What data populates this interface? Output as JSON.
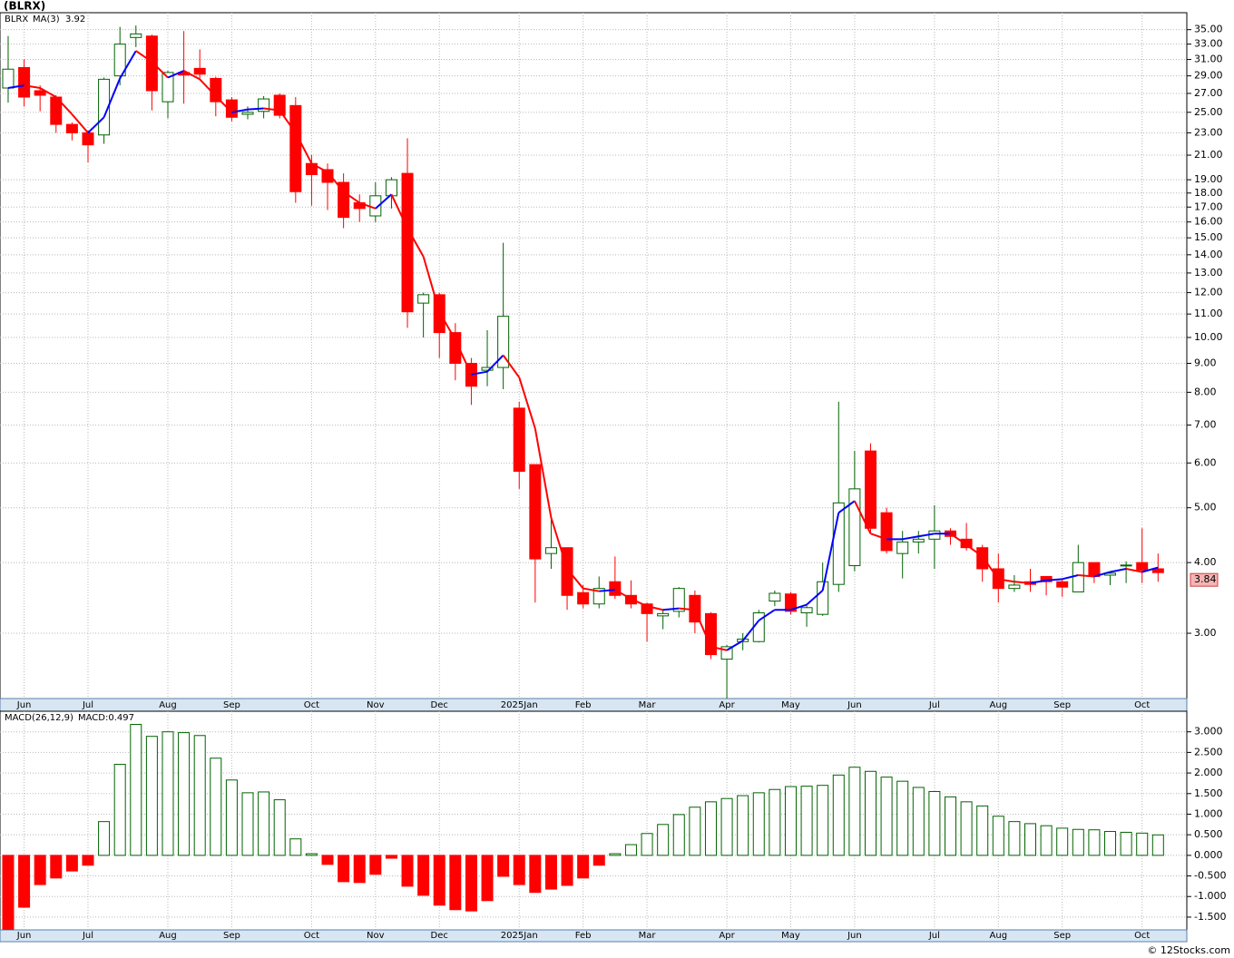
{
  "chart_data": [
    {
      "type": "candlestick",
      "title": "(BLRX)",
      "symbol": "BLRX",
      "symbol_color": "#008000",
      "up_color": "#006400",
      "down_color": "#ff0000",
      "log_scale": true,
      "grid": true,
      "open": [
        27.6,
        30.0,
        27.3,
        26.6,
        23.8,
        23.0,
        22.8,
        29.0,
        33.9,
        34.1,
        26.1,
        29.4,
        29.9,
        28.7,
        26.3,
        24.8,
        25.1,
        26.8,
        25.7,
        20.3,
        19.8,
        18.8,
        17.3,
        16.4,
        17.8,
        19.5,
        11.5,
        11.9,
        10.2,
        9.0,
        8.75,
        8.85,
        7.5,
        5.96,
        4.15,
        4.25,
        3.54,
        3.38,
        3.7,
        3.5,
        3.38,
        3.22,
        3.28,
        3.5,
        3.25,
        2.7,
        2.9,
        2.9,
        3.42,
        3.52,
        3.26,
        3.24,
        3.66,
        3.95,
        6.3,
        4.9,
        4.15,
        4.35,
        4.4,
        4.55,
        4.4,
        4.25,
        3.9,
        3.6,
        3.7,
        3.78,
        3.7,
        3.55,
        4.0,
        3.8,
        3.95,
        4.0,
        3.9
      ],
      "high": [
        34.1,
        31.0,
        27.9,
        26.8,
        24.0,
        23.2,
        28.8,
        35.4,
        35.6,
        34.3,
        29.6,
        34.8,
        32.3,
        28.9,
        26.6,
        25.6,
        26.7,
        27.0,
        26.6,
        21.0,
        20.3,
        19.5,
        17.9,
        18.8,
        19.2,
        22.5,
        12.0,
        12.0,
        10.6,
        9.2,
        10.3,
        14.7,
        7.7,
        5.96,
        4.85,
        4.25,
        3.65,
        3.78,
        4.1,
        3.72,
        3.4,
        3.3,
        3.62,
        3.57,
        3.27,
        2.86,
        3.0,
        3.3,
        3.57,
        3.55,
        3.36,
        4.0,
        7.7,
        6.3,
        6.5,
        5.0,
        4.55,
        4.55,
        5.05,
        4.6,
        4.7,
        4.3,
        4.15,
        3.8,
        3.9,
        3.78,
        3.75,
        4.3,
        4.0,
        3.85,
        4.02,
        4.6,
        4.15
      ],
      "low": [
        26.0,
        25.6,
        25.1,
        23.0,
        22.3,
        20.4,
        22.0,
        27.9,
        32.6,
        25.2,
        24.4,
        25.9,
        28.5,
        24.6,
        24.1,
        24.3,
        24.4,
        24.4,
        17.3,
        17.1,
        16.8,
        15.6,
        16.0,
        16.0,
        16.9,
        10.4,
        10.0,
        9.2,
        8.4,
        7.6,
        8.2,
        8.1,
        5.4,
        3.4,
        3.9,
        3.3,
        3.32,
        3.32,
        3.45,
        3.32,
        2.9,
        3.05,
        3.2,
        3.0,
        2.7,
        2.3,
        2.8,
        2.89,
        3.35,
        3.24,
        3.08,
        3.22,
        3.55,
        3.86,
        4.5,
        4.15,
        3.75,
        4.15,
        3.9,
        4.3,
        4.2,
        3.7,
        3.4,
        3.55,
        3.55,
        3.5,
        3.48,
        3.55,
        3.68,
        3.65,
        3.68,
        3.68,
        3.7
      ],
      "close": [
        29.8,
        26.6,
        26.8,
        23.8,
        23.0,
        21.9,
        28.6,
        33.0,
        34.4,
        27.3,
        29.4,
        29.1,
        29.2,
        26.1,
        24.5,
        25.0,
        26.4,
        24.7,
        18.1,
        19.4,
        18.8,
        16.3,
        16.9,
        17.8,
        19.0,
        11.1,
        11.9,
        10.2,
        9.0,
        8.2,
        8.85,
        10.9,
        5.8,
        4.06,
        4.25,
        3.5,
        3.38,
        3.6,
        3.5,
        3.38,
        3.25,
        3.25,
        3.6,
        3.14,
        2.75,
        2.84,
        2.93,
        3.26,
        3.53,
        3.28,
        3.33,
        3.7,
        5.1,
        5.4,
        4.6,
        4.2,
        4.35,
        4.4,
        4.55,
        4.45,
        4.25,
        3.9,
        3.6,
        3.65,
        3.66,
        3.7,
        3.62,
        4.0,
        3.78,
        3.83,
        3.96,
        3.88,
        3.84
      ],
      "ma": {
        "name": "MA(3)",
        "name_color": "#0000cc",
        "up_color": "#0000ff",
        "down_color": "#ff0000",
        "values": [
          27.6,
          27.9,
          27.6,
          26.6,
          24.8,
          23.0,
          24.5,
          28.7,
          32.1,
          30.7,
          28.8,
          29.6,
          28.6,
          26.7,
          25.0,
          25.3,
          25.4,
          25.2,
          23.0,
          20.3,
          19.6,
          18.1,
          17.3,
          16.9,
          17.9,
          15.6,
          13.9,
          11.1,
          9.9,
          8.6,
          8.7,
          9.3,
          8.5,
          6.9,
          4.8,
          3.9,
          3.6,
          3.56,
          3.58,
          3.45,
          3.35,
          3.3,
          3.32,
          3.3,
          2.84,
          2.8,
          2.91,
          3.16,
          3.3,
          3.3,
          3.37,
          3.57,
          4.9,
          5.14,
          4.5,
          4.4,
          4.4,
          4.45,
          4.5,
          4.5,
          4.3,
          4.1,
          3.74,
          3.7,
          3.68,
          3.72,
          3.74,
          3.8,
          3.78,
          3.85,
          3.9,
          3.85,
          3.92
        ]
      },
      "ylim": [
        2.3,
        37.5
      ],
      "yticks": [
        {
          "value": 35,
          "label": "35.00"
        },
        {
          "value": 33,
          "label": "33.00"
        },
        {
          "value": 31,
          "label": "31.00"
        },
        {
          "value": 29,
          "label": "29.00"
        },
        {
          "value": 27,
          "label": "27.00"
        },
        {
          "value": 25,
          "label": "25.00"
        },
        {
          "value": 23,
          "label": "23.00"
        },
        {
          "value": 21,
          "label": "21.00"
        },
        {
          "value": 19,
          "label": "19.00"
        },
        {
          "value": 18,
          "label": "18.00"
        },
        {
          "value": 17,
          "label": "17.00"
        },
        {
          "value": 16,
          "label": "16.00"
        },
        {
          "value": 15,
          "label": "15.00"
        },
        {
          "value": 14,
          "label": "14.00"
        },
        {
          "value": 13,
          "label": "13.00"
        },
        {
          "value": 12,
          "label": "12.00"
        },
        {
          "value": 11,
          "label": "11.00"
        },
        {
          "value": 10,
          "label": "10.00"
        },
        {
          "value": 9,
          "label": "9.00"
        },
        {
          "value": 8,
          "label": "8.00"
        },
        {
          "value": 7,
          "label": "7.00"
        },
        {
          "value": 6,
          "label": "6.00"
        },
        {
          "value": 5,
          "label": "5.00"
        },
        {
          "value": 4,
          "label": "4.00"
        },
        {
          "value": 3,
          "label": "3.00"
        }
      ],
      "xlim": [
        -0.51,
        73.8
      ],
      "xticks": [
        {
          "value": 1,
          "label": "Jun"
        },
        {
          "value": 5,
          "label": "Jul"
        },
        {
          "value": 10,
          "label": "Aug"
        },
        {
          "value": 14,
          "label": "Sep"
        },
        {
          "value": 19,
          "label": "Oct"
        },
        {
          "value": 23,
          "label": "Nov"
        },
        {
          "value": 27,
          "label": "Dec"
        },
        {
          "value": 32,
          "label": "2025Jan"
        },
        {
          "value": 36,
          "label": "Feb"
        },
        {
          "value": 40,
          "label": "Mar"
        },
        {
          "value": 45,
          "label": "Apr"
        },
        {
          "value": 49,
          "label": "May"
        },
        {
          "value": 53,
          "label": "Jun"
        },
        {
          "value": 58,
          "label": "Jul"
        },
        {
          "value": 62,
          "label": "Aug"
        },
        {
          "value": 66,
          "label": "Sep"
        },
        {
          "value": 71,
          "label": "Oct"
        }
      ]
    },
    {
      "type": "bar",
      "title": "MACD(26,12,9)",
      "value_title": "MACD:0.497",
      "value_title_color": "#0000cc",
      "up_color": "#006400",
      "down_color": "#ff0000",
      "grid": true,
      "values": [
        -1.9,
        -1.26,
        -0.71,
        -0.55,
        -0.38,
        -0.24,
        0.82,
        2.21,
        3.18,
        2.89,
        3.0,
        2.98,
        2.91,
        2.36,
        1.83,
        1.52,
        1.54,
        1.35,
        0.4,
        0.04,
        -0.22,
        -0.64,
        -0.66,
        -0.46,
        -0.07,
        -0.75,
        -0.97,
        -1.21,
        -1.32,
        -1.35,
        -1.1,
        -0.51,
        -0.71,
        -0.9,
        -0.82,
        -0.73,
        -0.55,
        -0.24,
        0.04,
        0.26,
        0.53,
        0.75,
        0.99,
        1.17,
        1.3,
        1.38,
        1.45,
        1.52,
        1.6,
        1.67,
        1.68,
        1.7,
        1.95,
        2.14,
        2.04,
        1.9,
        1.8,
        1.65,
        1.55,
        1.42,
        1.3,
        1.2,
        0.95,
        0.82,
        0.77,
        0.72,
        0.66,
        0.63,
        0.62,
        0.58,
        0.56,
        0.54,
        0.497
      ],
      "ylim": [
        -1.81,
        3.5
      ],
      "yticks": [
        {
          "value": 3,
          "label": "3.000"
        },
        {
          "value": 2.5,
          "label": "2.500"
        },
        {
          "value": 2,
          "label": "2.000"
        },
        {
          "value": 1.5,
          "label": "1.500"
        },
        {
          "value": 1,
          "label": "1.000"
        },
        {
          "value": 0.5,
          "label": "0.500"
        },
        {
          "value": 0,
          "label": "0.000"
        },
        {
          "value": -0.5,
          "label": "-0.500"
        },
        {
          "value": -1,
          "label": "-1.000"
        },
        {
          "value": -1.5,
          "label": "-1.500"
        }
      ],
      "xlim": [
        -0.51,
        73.8
      ],
      "xticks": [
        {
          "value": 1,
          "label": "Jun"
        },
        {
          "value": 5,
          "label": "Jul"
        },
        {
          "value": 10,
          "label": "Aug"
        },
        {
          "value": 14,
          "label": "Sep"
        },
        {
          "value": 19,
          "label": "Oct"
        },
        {
          "value": 23,
          "label": "Nov"
        },
        {
          "value": 27,
          "label": "Dec"
        },
        {
          "value": 32,
          "label": "2025Jan"
        },
        {
          "value": 36,
          "label": "Feb"
        },
        {
          "value": 40,
          "label": "Mar"
        },
        {
          "value": 45,
          "label": "Apr"
        },
        {
          "value": 49,
          "label": "May"
        },
        {
          "value": 53,
          "label": "Jun"
        },
        {
          "value": 58,
          "label": "Jul"
        },
        {
          "value": 62,
          "label": "Aug"
        },
        {
          "value": 66,
          "label": "Sep"
        },
        {
          "value": 71,
          "label": "Oct"
        }
      ]
    }
  ],
  "footer": "© 12Stocks.com"
}
